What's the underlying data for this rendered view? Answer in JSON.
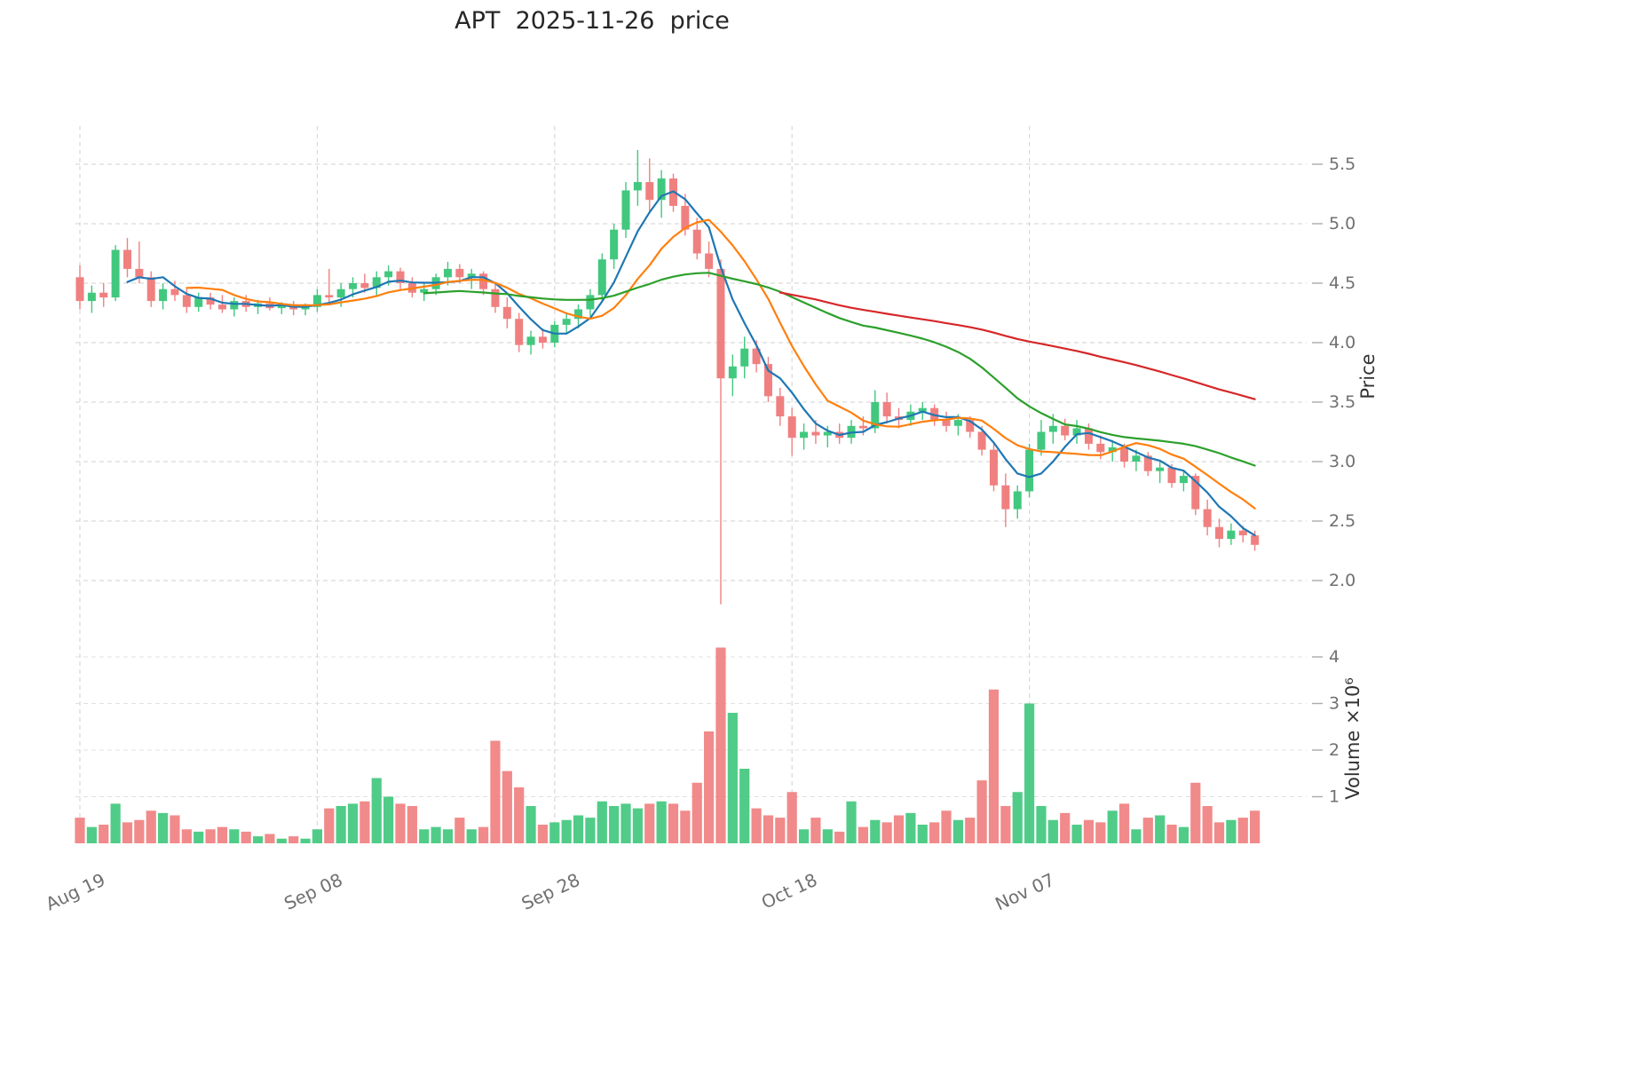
{
  "title": "APT  2025-11-26  price",
  "chart_data": {
    "type": "candlestick",
    "symbol": "APT",
    "as_of_date": "2025-11-26",
    "x_tick_labels": [
      "Aug 19",
      "Sep 08",
      "Sep 28",
      "Oct 18",
      "Nov 07"
    ],
    "x_tick_indices": [
      0,
      20,
      40,
      60,
      80
    ],
    "price_axis": {
      "label": "Price",
      "ticks": [
        2.0,
        2.5,
        3.0,
        3.5,
        4.0,
        4.5,
        5.0,
        5.5
      ],
      "range": [
        1.75,
        5.75
      ]
    },
    "volume_axis": {
      "label": "Volume ×10⁶",
      "ticks": [
        1,
        2,
        3,
        4
      ],
      "range": [
        0,
        4.4
      ]
    },
    "ohlc": {
      "open": [
        4.55,
        4.35,
        4.42,
        4.38,
        4.78,
        4.62,
        4.55,
        4.35,
        4.45,
        4.4,
        4.3,
        4.38,
        4.32,
        4.28,
        4.35,
        4.3,
        4.33,
        4.29,
        4.31,
        4.28,
        4.3,
        4.4,
        4.38,
        4.45,
        4.5,
        4.46,
        4.55,
        4.6,
        4.5,
        4.42,
        4.45,
        4.55,
        4.62,
        4.55,
        4.58,
        4.45,
        4.3,
        4.2,
        3.98,
        4.05,
        4.0,
        4.15,
        4.2,
        4.28,
        4.4,
        4.7,
        4.95,
        5.28,
        5.35,
        5.2,
        5.38,
        5.15,
        4.95,
        4.75,
        4.62,
        3.7,
        3.8,
        3.95,
        3.82,
        3.55,
        3.38,
        3.2,
        3.25,
        3.22,
        3.25,
        3.2,
        3.3,
        3.28,
        3.5,
        3.38,
        3.35,
        3.42,
        3.45,
        3.35,
        3.3,
        3.35,
        3.25,
        3.1,
        2.8,
        2.6,
        2.75,
        3.1,
        3.25,
        3.3,
        3.22,
        3.28,
        3.15,
        3.08,
        3.12,
        3.0,
        3.05,
        2.92,
        2.95,
        2.82,
        2.88,
        2.6,
        2.45,
        2.35,
        2.42,
        2.38
      ],
      "high": [
        4.65,
        4.48,
        4.5,
        4.82,
        4.88,
        4.85,
        4.6,
        4.5,
        4.52,
        4.45,
        4.42,
        4.42,
        4.4,
        4.38,
        4.4,
        4.36,
        4.38,
        4.34,
        4.35,
        4.33,
        4.45,
        4.62,
        4.5,
        4.55,
        4.58,
        4.6,
        4.65,
        4.63,
        4.55,
        4.5,
        4.58,
        4.68,
        4.66,
        4.62,
        4.6,
        4.5,
        4.38,
        4.25,
        4.1,
        4.12,
        4.18,
        4.25,
        4.32,
        4.45,
        4.75,
        5.0,
        5.35,
        5.62,
        5.55,
        5.45,
        5.42,
        5.25,
        5.05,
        4.85,
        4.7,
        3.9,
        4.05,
        4.02,
        3.88,
        3.62,
        3.45,
        3.32,
        3.35,
        3.3,
        3.32,
        3.35,
        3.38,
        3.6,
        3.58,
        3.45,
        3.48,
        3.5,
        3.48,
        3.42,
        3.4,
        3.38,
        3.3,
        3.15,
        2.9,
        2.8,
        3.15,
        3.35,
        3.4,
        3.36,
        3.35,
        3.32,
        3.22,
        3.18,
        3.15,
        3.1,
        3.08,
        3.0,
        2.98,
        2.92,
        2.9,
        2.68,
        2.52,
        2.48,
        2.46,
        2.42
      ],
      "low": [
        4.28,
        4.25,
        4.3,
        4.35,
        4.55,
        4.5,
        4.3,
        4.28,
        4.35,
        4.25,
        4.26,
        4.28,
        4.25,
        4.22,
        4.26,
        4.24,
        4.27,
        4.24,
        4.23,
        4.23,
        4.26,
        4.32,
        4.3,
        4.38,
        4.42,
        4.4,
        4.48,
        4.45,
        4.38,
        4.35,
        4.4,
        4.48,
        4.5,
        4.45,
        4.4,
        4.25,
        4.12,
        3.92,
        3.9,
        3.95,
        3.96,
        4.08,
        4.12,
        4.22,
        4.35,
        4.62,
        4.88,
        5.15,
        5.1,
        5.05,
        5.1,
        4.9,
        4.7,
        4.55,
        1.8,
        3.55,
        3.7,
        3.75,
        3.5,
        3.3,
        3.05,
        3.1,
        3.15,
        3.12,
        3.15,
        3.15,
        3.22,
        3.24,
        3.32,
        3.28,
        3.3,
        3.35,
        3.3,
        3.25,
        3.22,
        3.2,
        3.05,
        2.75,
        2.45,
        2.52,
        2.7,
        3.05,
        3.15,
        3.18,
        3.15,
        3.1,
        3.02,
        3.0,
        2.95,
        2.92,
        2.88,
        2.82,
        2.78,
        2.75,
        2.55,
        2.38,
        2.28,
        2.3,
        2.32,
        2.25
      ],
      "close": [
        4.35,
        4.42,
        4.38,
        4.78,
        4.62,
        4.55,
        4.35,
        4.45,
        4.4,
        4.3,
        4.38,
        4.32,
        4.28,
        4.35,
        4.3,
        4.33,
        4.29,
        4.31,
        4.28,
        4.3,
        4.4,
        4.38,
        4.45,
        4.5,
        4.46,
        4.55,
        4.6,
        4.5,
        4.42,
        4.45,
        4.55,
        4.62,
        4.55,
        4.58,
        4.45,
        4.3,
        4.2,
        3.98,
        4.05,
        4.0,
        4.15,
        4.2,
        4.28,
        4.4,
        4.7,
        4.95,
        5.28,
        5.35,
        5.2,
        5.38,
        5.15,
        4.95,
        4.75,
        4.62,
        3.7,
        3.8,
        3.95,
        3.82,
        3.55,
        3.38,
        3.2,
        3.25,
        3.22,
        3.25,
        3.2,
        3.3,
        3.28,
        3.5,
        3.38,
        3.35,
        3.42,
        3.45,
        3.35,
        3.3,
        3.35,
        3.25,
        3.1,
        2.8,
        2.6,
        2.75,
        3.1,
        3.25,
        3.3,
        3.22,
        3.28,
        3.15,
        3.08,
        3.12,
        3.0,
        3.05,
        2.92,
        2.95,
        2.82,
        2.88,
        2.6,
        2.45,
        2.35,
        2.42,
        2.38,
        2.3
      ]
    },
    "volume": [
      0.55,
      0.35,
      0.4,
      0.85,
      0.45,
      0.5,
      0.7,
      0.65,
      0.6,
      0.3,
      0.25,
      0.3,
      0.35,
      0.3,
      0.25,
      0.15,
      0.2,
      0.1,
      0.15,
      0.1,
      0.3,
      0.75,
      0.8,
      0.85,
      0.9,
      1.4,
      1.0,
      0.85,
      0.8,
      0.3,
      0.35,
      0.3,
      0.55,
      0.3,
      0.35,
      2.2,
      1.55,
      1.2,
      0.8,
      0.4,
      0.45,
      0.5,
      0.6,
      0.55,
      0.9,
      0.8,
      0.85,
      0.75,
      0.85,
      0.9,
      0.85,
      0.7,
      1.3,
      2.4,
      4.2,
      2.8,
      1.6,
      0.75,
      0.6,
      0.55,
      1.1,
      0.3,
      0.55,
      0.3,
      0.25,
      0.9,
      0.35,
      0.5,
      0.45,
      0.6,
      0.65,
      0.4,
      0.45,
      0.7,
      0.5,
      0.55,
      1.35,
      3.3,
      0.8,
      1.1,
      3.0,
      0.8,
      0.5,
      0.65,
      0.4,
      0.5,
      0.45,
      0.7,
      0.85,
      0.3,
      0.55,
      0.6,
      0.4,
      0.35,
      1.3,
      0.8,
      0.45,
      0.5,
      0.55,
      0.7
    ],
    "moving_averages": [
      {
        "name": "ma5",
        "window": 5,
        "color": "#1f77b4"
      },
      {
        "name": "ma10",
        "window": 10,
        "color": "#ff7f0e"
      },
      {
        "name": "ma30",
        "window": 30,
        "color": "#2ca02c"
      },
      {
        "name": "ma60",
        "window": 60,
        "color": "#d62728"
      }
    ],
    "colors": {
      "up": "#41c87e",
      "down": "#f08080",
      "grid": "#d9d9d9",
      "tick_mark": "#ababab",
      "tick_text": "#707070",
      "axis_text": "#333333"
    },
    "layout_hints": {
      "grid": "dashed",
      "volume_panel": "bottom",
      "y_axis_side": "right"
    }
  }
}
